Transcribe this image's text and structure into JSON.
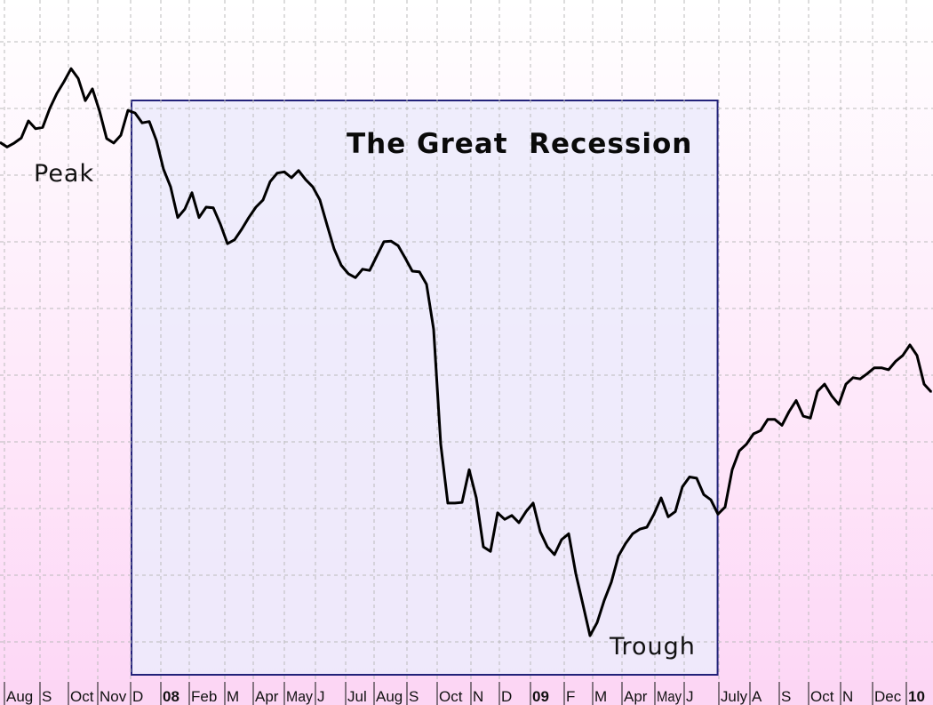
{
  "chart_data": {
    "type": "line",
    "title": "The Great  Recession",
    "xlabel": "",
    "ylabel": "",
    "ylim": [
      626,
      1667
    ],
    "grid": true,
    "colors": {
      "line": "#000000",
      "recession_fill": "#ecebfc",
      "recession_border": "#22227a",
      "background_top": "#ffffff",
      "background_bottom": "#fdd8f6",
      "axis_strip": "#fcd6f4"
    },
    "recession_span": [
      "2007-12-01",
      "2009-06-30"
    ],
    "annotations": [
      {
        "id": "peak",
        "text": "Peak"
      },
      {
        "id": "trough",
        "text": "Trough"
      }
    ],
    "tick_labels": [
      {
        "text": "Aug",
        "bold": false
      },
      {
        "text": "S",
        "bold": false
      },
      {
        "text": "Oct",
        "bold": false
      },
      {
        "text": "Nov",
        "bold": false
      },
      {
        "text": "D",
        "bold": false
      },
      {
        "text": "08",
        "bold": true
      },
      {
        "text": "Feb",
        "bold": false
      },
      {
        "text": "M",
        "bold": false
      },
      {
        "text": "Apr",
        "bold": false
      },
      {
        "text": "May",
        "bold": false
      },
      {
        "text": "J",
        "bold": false
      },
      {
        "text": "Jul",
        "bold": false
      },
      {
        "text": "Aug",
        "bold": false
      },
      {
        "text": "S",
        "bold": false
      },
      {
        "text": "Oct",
        "bold": false
      },
      {
        "text": "N",
        "bold": false
      },
      {
        "text": "D",
        "bold": false
      },
      {
        "text": "09",
        "bold": true
      },
      {
        "text": "F",
        "bold": false
      },
      {
        "text": "M",
        "bold": false
      },
      {
        "text": "Apr",
        "bold": false
      },
      {
        "text": "May",
        "bold": false
      },
      {
        "text": "J",
        "bold": false
      },
      {
        "text": "July",
        "bold": false
      },
      {
        "text": "A",
        "bold": false
      },
      {
        "text": "S",
        "bold": false
      },
      {
        "text": "Oct",
        "bold": false
      },
      {
        "text": "N",
        "bold": false
      },
      {
        "text": "Dec",
        "bold": false
      },
      {
        "text": "10",
        "bold": true
      }
    ],
    "x": [
      "2007-07-27",
      "2007-08-03",
      "2007-08-10",
      "2007-08-17",
      "2007-08-24",
      "2007-08-31",
      "2007-09-07",
      "2007-09-14",
      "2007-09-21",
      "2007-09-28",
      "2007-10-05",
      "2007-10-12",
      "2007-10-19",
      "2007-10-26",
      "2007-11-02",
      "2007-11-09",
      "2007-11-16",
      "2007-11-23",
      "2007-11-30",
      "2007-12-07",
      "2007-12-14",
      "2007-12-21",
      "2007-12-28",
      "2008-01-04",
      "2008-01-11",
      "2008-01-18",
      "2008-01-25",
      "2008-02-01",
      "2008-02-08",
      "2008-02-15",
      "2008-02-22",
      "2008-02-29",
      "2008-03-07",
      "2008-03-14",
      "2008-03-21",
      "2008-03-28",
      "2008-04-04",
      "2008-04-11",
      "2008-04-18",
      "2008-04-25",
      "2008-05-02",
      "2008-05-09",
      "2008-05-16",
      "2008-05-23",
      "2008-05-30",
      "2008-06-06",
      "2008-06-13",
      "2008-06-20",
      "2008-06-27",
      "2008-07-04",
      "2008-07-11",
      "2008-07-18",
      "2008-07-25",
      "2008-08-01",
      "2008-08-08",
      "2008-08-15",
      "2008-08-22",
      "2008-08-29",
      "2008-09-05",
      "2008-09-12",
      "2008-09-19",
      "2008-09-26",
      "2008-10-03",
      "2008-10-10",
      "2008-10-17",
      "2008-10-24",
      "2008-10-31",
      "2008-11-07",
      "2008-11-14",
      "2008-11-21",
      "2008-11-28",
      "2008-12-05",
      "2008-12-12",
      "2008-12-19",
      "2008-12-26",
      "2009-01-02",
      "2009-01-09",
      "2009-01-16",
      "2009-01-23",
      "2009-01-30",
      "2009-02-06",
      "2009-02-13",
      "2009-02-20",
      "2009-02-27",
      "2009-03-06",
      "2009-03-13",
      "2009-03-20",
      "2009-03-27",
      "2009-04-03",
      "2009-04-10",
      "2009-04-17",
      "2009-04-24",
      "2009-05-01",
      "2009-05-08",
      "2009-05-15",
      "2009-05-22",
      "2009-05-29",
      "2009-06-05",
      "2009-06-12",
      "2009-06-19",
      "2009-06-26",
      "2009-07-03",
      "2009-07-10",
      "2009-07-17",
      "2009-07-24",
      "2009-07-31",
      "2009-08-07",
      "2009-08-14",
      "2009-08-21",
      "2009-08-28",
      "2009-09-04",
      "2009-09-11",
      "2009-09-18",
      "2009-09-25",
      "2009-10-02",
      "2009-10-09",
      "2009-10-16",
      "2009-10-23",
      "2009-10-30",
      "2009-11-06",
      "2009-11-13",
      "2009-11-20",
      "2009-11-27",
      "2009-12-04",
      "2009-12-11",
      "2009-12-18",
      "2009-12-25",
      "2010-01-01",
      "2010-01-08",
      "2010-01-15",
      "2010-01-22",
      "2010-01-29"
    ],
    "series": [
      {
        "values": [
          1449,
          1442,
          1448,
          1456,
          1482,
          1470,
          1472,
          1501,
          1524,
          1542,
          1562,
          1547,
          1513,
          1531,
          1497,
          1455,
          1448,
          1460,
          1498,
          1494,
          1479,
          1481,
          1452,
          1408,
          1381,
          1334,
          1347,
          1372,
          1334,
          1350,
          1349,
          1324,
          1294,
          1300,
          1316,
          1334,
          1350,
          1361,
          1389,
          1402,
          1404,
          1395,
          1406,
          1392,
          1381,
          1361,
          1323,
          1286,
          1261,
          1248,
          1242,
          1255,
          1253,
          1275,
          1297,
          1298,
          1291,
          1272,
          1252,
          1251,
          1232,
          1163,
          987,
          897,
          897,
          898,
          948,
          905,
          830,
          823,
          882,
          872,
          878,
          867,
          884,
          897,
          853,
          830,
          818,
          841,
          850,
          789,
          742,
          694,
          714,
          748,
          776,
          816,
          835,
          850,
          857,
          860,
          880,
          905,
          876,
          884,
          922,
          937,
          935,
          910,
          902,
          880,
          891,
          948,
          977,
          987,
          1003,
          1008,
          1025,
          1025,
          1016,
          1037,
          1054,
          1030,
          1027,
          1068,
          1079,
          1061,
          1048,
          1079,
          1089,
          1087,
          1095,
          1104,
          1104,
          1101,
          1114,
          1123,
          1139,
          1123,
          1079,
          1067
        ]
      }
    ]
  }
}
